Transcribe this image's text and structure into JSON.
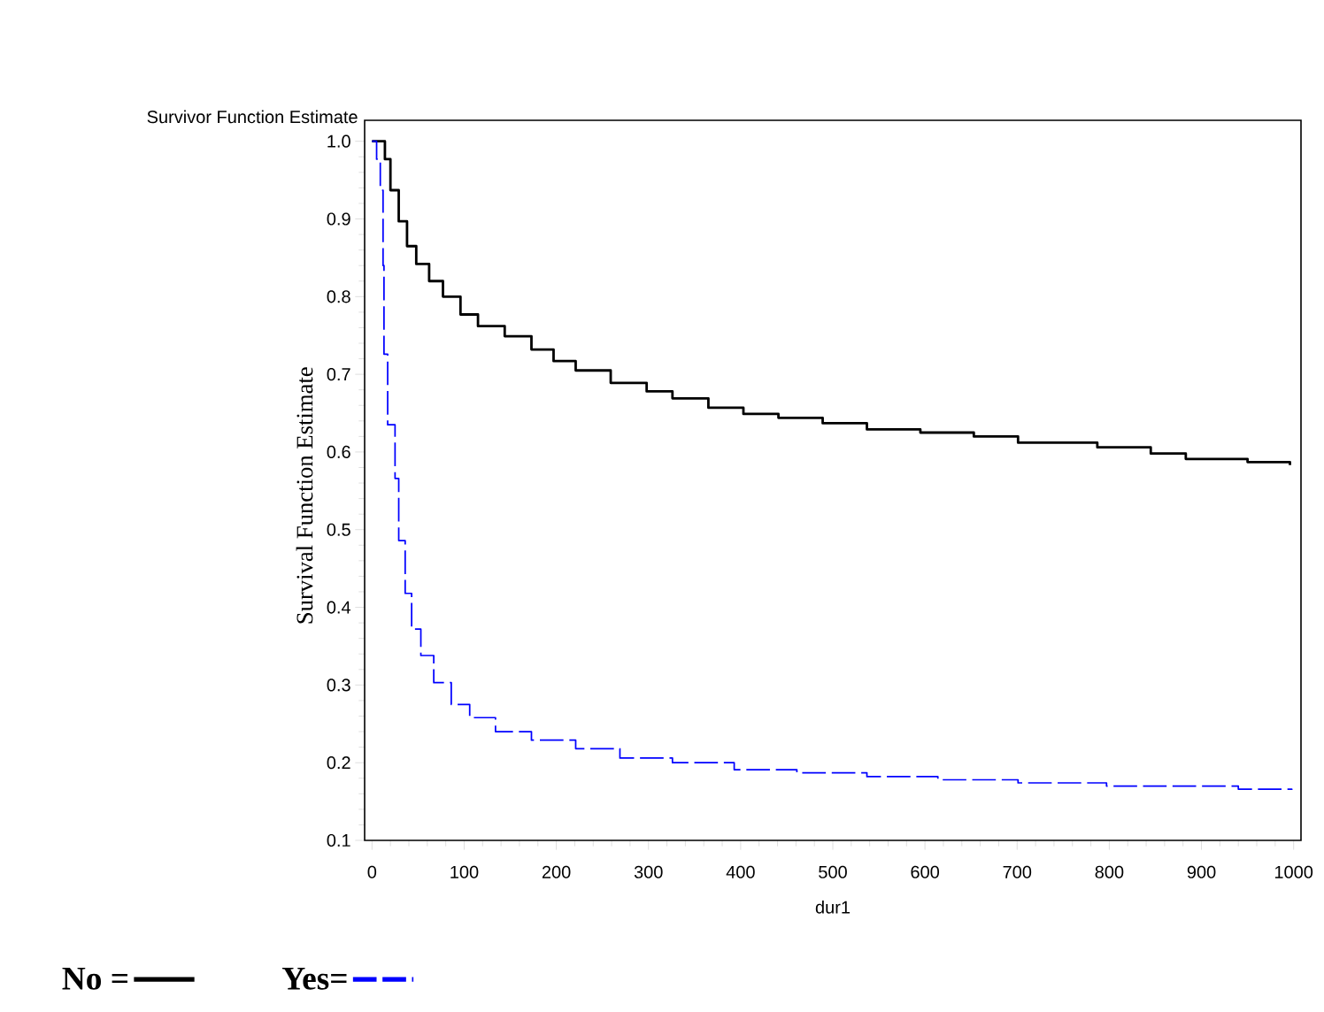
{
  "chart_data": {
    "type": "step",
    "ylabel": "Survivor Function Estimate",
    "xlabel": "dur1",
    "annotations": [
      "Survival Function Estimate"
    ],
    "xlim": [
      -8,
      1008
    ],
    "ylim": [
      0.1,
      1.027
    ],
    "xticks": [
      0,
      100,
      200,
      300,
      400,
      500,
      600,
      700,
      800,
      900,
      1000
    ],
    "yticks": [
      {
        "value": 0.1,
        "label": "0.1"
      },
      {
        "value": 0.2,
        "label": "0.2"
      },
      {
        "value": 0.3,
        "label": "0.3"
      },
      {
        "value": 0.4,
        "label": "0.4"
      },
      {
        "value": 0.5,
        "label": "0.5"
      },
      {
        "value": 0.6,
        "label": "0.6"
      },
      {
        "value": 0.7,
        "label": "0.7"
      },
      {
        "value": 0.8,
        "label": "0.8"
      },
      {
        "value": 0.9,
        "label": "0.9"
      },
      {
        "value": 1.0,
        "label": "1.0"
      }
    ],
    "grid": false,
    "legend": "bottom",
    "marker": "none",
    "series": [
      {
        "name": "No =",
        "color": "#000000",
        "line_style": "solid",
        "x": [
          0,
          8,
          14,
          20,
          29,
          38,
          48,
          62,
          77,
          96,
          115,
          144,
          173,
          197,
          221,
          259,
          298,
          326,
          365,
          403,
          441,
          489,
          537,
          595,
          653,
          701,
          787,
          845,
          883,
          950,
          996
        ],
        "values": [
          1.0,
          1.0,
          0.977,
          0.937,
          0.897,
          0.865,
          0.842,
          0.82,
          0.8,
          0.777,
          0.762,
          0.749,
          0.732,
          0.717,
          0.705,
          0.689,
          0.678,
          0.669,
          0.657,
          0.649,
          0.644,
          0.637,
          0.629,
          0.625,
          0.62,
          0.612,
          0.606,
          0.598,
          0.591,
          0.587,
          0.583
        ]
      },
      {
        "name": "Yes=",
        "color": "#0000ff",
        "line_style": "dashed",
        "x": [
          0,
          5,
          9,
          12,
          13,
          17,
          25,
          29,
          36,
          43,
          53,
          67,
          86,
          106,
          134,
          173,
          221,
          269,
          326,
          393,
          461,
          537,
          614,
          701,
          797,
          940,
          998
        ],
        "values": [
          1.0,
          0.977,
          0.937,
          0.84,
          0.726,
          0.635,
          0.566,
          0.486,
          0.418,
          0.372,
          0.338,
          0.303,
          0.275,
          0.258,
          0.24,
          0.229,
          0.218,
          0.206,
          0.2,
          0.191,
          0.187,
          0.182,
          0.178,
          0.174,
          0.17,
          0.166,
          0.165
        ]
      }
    ]
  }
}
